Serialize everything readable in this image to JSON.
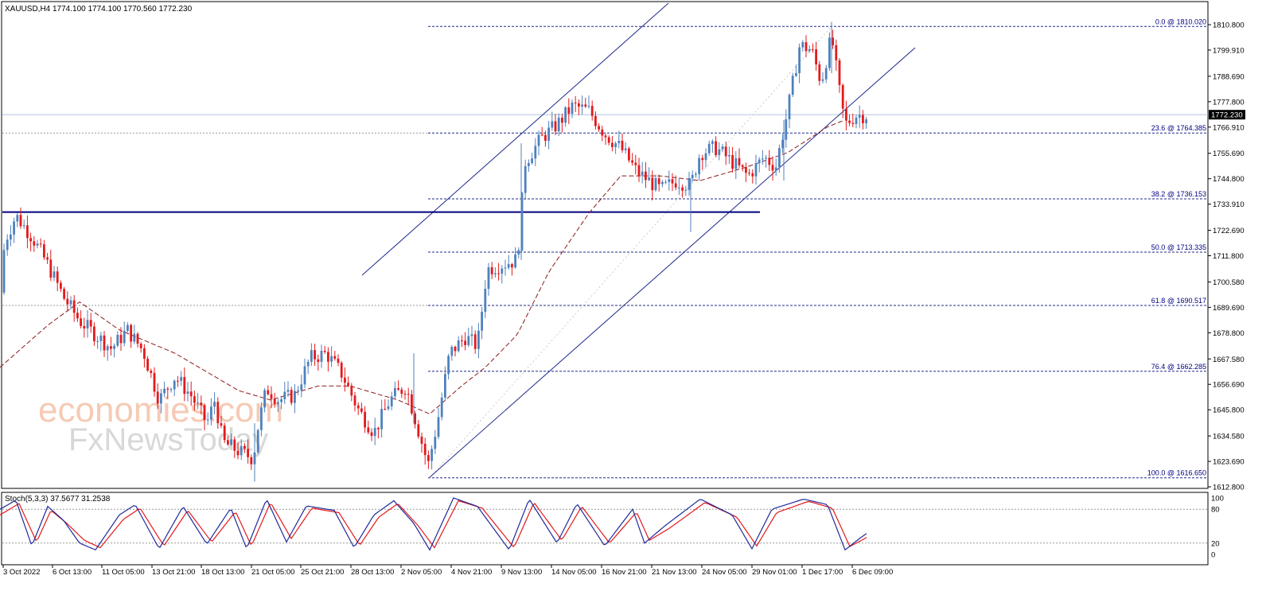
{
  "header": {
    "symbol": "XAUUSD,H4",
    "ohlc": "1774.100 1774.100 1770.560 1772.230"
  },
  "current_price": "1772.230",
  "oscillator": {
    "label": "Stoch(5,3,3) 37.5677 31.2538",
    "ticks": [
      "100",
      "80",
      "20",
      "0"
    ]
  },
  "watermark": {
    "line1": "economies.com",
    "line2": "FxNewsToday"
  },
  "colors": {
    "bull": "#4f81bd",
    "bear": "#e31a1c",
    "fib": "#1f2a8a",
    "channel": "#1f2a8a",
    "resistance": "#00007f",
    "ma": "#8b1a1a",
    "stoch_main": "#1f2a9a",
    "stoch_signal": "#e31a1c"
  },
  "chart_data": {
    "type": "candlestick",
    "title": "XAUUSD,H4",
    "ylim": [
      1612.8,
      1815.8
    ],
    "y_ticks": [
      "1810.800",
      "1799.910",
      "1788.690",
      "1777.800",
      "1766.910",
      "1755.690",
      "1744.800",
      "1733.910",
      "1722.690",
      "1711.800",
      "1700.580",
      "1689.690",
      "1678.800",
      "1667.580",
      "1656.690",
      "1645.800",
      "1634.580",
      "1623.690",
      "1612.800"
    ],
    "x_ticks": [
      "3 Oct 2022",
      "6 Oct 13:00",
      "11 Oct 05:00",
      "13 Oct 21:00",
      "18 Oct 13:00",
      "21 Oct 05:00",
      "25 Oct 21:00",
      "28 Oct 13:00",
      "2 Nov 05:00",
      "4 Nov 21:00",
      "9 Nov 13:00",
      "14 Nov 05:00",
      "16 Nov 21:00",
      "21 Nov 13:00",
      "24 Nov 05:00",
      "29 Nov 01:00",
      "1 Dec 17:00",
      "6 Dec 09:00"
    ],
    "fibonacci": [
      {
        "label": "0.0 @ 1810.020",
        "price": 1810.02
      },
      {
        "label": "23.6 @ 1764.385",
        "price": 1764.385
      },
      {
        "label": "38.2 @ 1736.153",
        "price": 1736.153
      },
      {
        "label": "50.0 @ 1713.335",
        "price": 1713.335
      },
      {
        "label": "61.8 @ 1690.517",
        "price": 1690.517
      },
      {
        "label": "76.4 @ 1662.285",
        "price": 1662.285
      },
      {
        "label": "100.0 @ 1616.650",
        "price": 1616.65
      }
    ],
    "resistance_level": 1730.5,
    "anchors": [
      [
        0,
        1696
      ],
      [
        6,
        1718
      ],
      [
        20,
        1729
      ],
      [
        40,
        1720
      ],
      [
        60,
        1708
      ],
      [
        80,
        1694
      ],
      [
        100,
        1684
      ],
      [
        120,
        1678
      ],
      [
        140,
        1672
      ],
      [
        160,
        1680
      ],
      [
        180,
        1671
      ],
      [
        200,
        1650
      ],
      [
        220,
        1660
      ],
      [
        240,
        1652
      ],
      [
        260,
        1640
      ],
      [
        270,
        1650
      ],
      [
        280,
        1632
      ],
      [
        300,
        1628
      ],
      [
        318,
        1625
      ],
      [
        325,
        1640
      ],
      [
        335,
        1655
      ],
      [
        350,
        1650
      ],
      [
        370,
        1652
      ],
      [
        390,
        1668
      ],
      [
        410,
        1670
      ],
      [
        430,
        1661
      ],
      [
        450,
        1646
      ],
      [
        470,
        1636
      ],
      [
        490,
        1650
      ],
      [
        510,
        1656
      ],
      [
        525,
        1638
      ],
      [
        538,
        1622
      ],
      [
        550,
        1641
      ],
      [
        565,
        1670
      ],
      [
        585,
        1677
      ],
      [
        600,
        1673
      ],
      [
        612,
        1706
      ],
      [
        630,
        1708
      ],
      [
        650,
        1710
      ],
      [
        660,
        1752
      ],
      [
        680,
        1762
      ],
      [
        700,
        1768
      ],
      [
        720,
        1776
      ],
      [
        740,
        1774
      ],
      [
        760,
        1764
      ],
      [
        780,
        1758
      ],
      [
        800,
        1748
      ],
      [
        815,
        1744
      ],
      [
        830,
        1740
      ],
      [
        850,
        1744
      ],
      [
        868,
        1742
      ],
      [
        880,
        1756
      ],
      [
        900,
        1758
      ],
      [
        920,
        1752
      ],
      [
        940,
        1746
      ],
      [
        960,
        1754
      ],
      [
        975,
        1750
      ],
      [
        990,
        1774
      ],
      [
        1005,
        1802
      ],
      [
        1020,
        1800
      ],
      [
        1032,
        1786
      ],
      [
        1045,
        1806
      ],
      [
        1055,
        1782
      ],
      [
        1062,
        1768
      ],
      [
        1075,
        1772
      ],
      [
        1090,
        1772
      ]
    ],
    "moving_average_anchors": [
      [
        0,
        1664
      ],
      [
        60,
        1682
      ],
      [
        100,
        1692
      ],
      [
        150,
        1680
      ],
      [
        220,
        1670
      ],
      [
        300,
        1654
      ],
      [
        340,
        1650
      ],
      [
        400,
        1656
      ],
      [
        440,
        1656
      ],
      [
        500,
        1650
      ],
      [
        540,
        1644
      ],
      [
        580,
        1656
      ],
      [
        610,
        1664
      ],
      [
        650,
        1678
      ],
      [
        690,
        1705
      ],
      [
        740,
        1730
      ],
      [
        780,
        1746
      ],
      [
        830,
        1746
      ],
      [
        880,
        1744
      ],
      [
        940,
        1750
      ],
      [
        990,
        1756
      ],
      [
        1040,
        1767
      ],
      [
        1062,
        1770
      ]
    ],
    "stoch_main_anchors": [
      [
        0,
        80
      ],
      [
        20,
        96
      ],
      [
        40,
        15
      ],
      [
        60,
        85
      ],
      [
        80,
        60
      ],
      [
        100,
        20
      ],
      [
        120,
        8
      ],
      [
        150,
        70
      ],
      [
        170,
        88
      ],
      [
        200,
        10
      ],
      [
        230,
        85
      ],
      [
        260,
        18
      ],
      [
        290,
        82
      ],
      [
        310,
        10
      ],
      [
        335,
        98
      ],
      [
        360,
        22
      ],
      [
        385,
        86
      ],
      [
        420,
        78
      ],
      [
        445,
        12
      ],
      [
        470,
        70
      ],
      [
        495,
        95
      ],
      [
        520,
        55
      ],
      [
        540,
        8
      ],
      [
        570,
        100
      ],
      [
        600,
        85
      ],
      [
        640,
        8
      ],
      [
        665,
        98
      ],
      [
        700,
        20
      ],
      [
        725,
        90
      ],
      [
        760,
        15
      ],
      [
        795,
        80
      ],
      [
        810,
        20
      ],
      [
        835,
        50
      ],
      [
        880,
        98
      ],
      [
        920,
        70
      ],
      [
        945,
        10
      ],
      [
        970,
        80
      ],
      [
        1010,
        98
      ],
      [
        1040,
        88
      ],
      [
        1062,
        8
      ],
      [
        1080,
        28
      ],
      [
        1090,
        38
      ]
    ],
    "stoch_signal_anchors": [
      [
        0,
        70
      ],
      [
        24,
        90
      ],
      [
        46,
        22
      ],
      [
        64,
        78
      ],
      [
        84,
        55
      ],
      [
        106,
        25
      ],
      [
        126,
        12
      ],
      [
        155,
        62
      ],
      [
        176,
        82
      ],
      [
        206,
        15
      ],
      [
        236,
        78
      ],
      [
        266,
        22
      ],
      [
        296,
        76
      ],
      [
        316,
        15
      ],
      [
        340,
        92
      ],
      [
        366,
        28
      ],
      [
        392,
        82
      ],
      [
        426,
        74
      ],
      [
        452,
        16
      ],
      [
        476,
        66
      ],
      [
        500,
        90
      ],
      [
        526,
        50
      ],
      [
        546,
        12
      ],
      [
        576,
        95
      ],
      [
        606,
        82
      ],
      [
        646,
        12
      ],
      [
        671,
        92
      ],
      [
        706,
        25
      ],
      [
        731,
        85
      ],
      [
        766,
        20
      ],
      [
        800,
        75
      ],
      [
        816,
        25
      ],
      [
        841,
        46
      ],
      [
        886,
        92
      ],
      [
        926,
        66
      ],
      [
        951,
        15
      ],
      [
        976,
        74
      ],
      [
        1016,
        94
      ],
      [
        1046,
        82
      ],
      [
        1068,
        14
      ],
      [
        1084,
        26
      ],
      [
        1090,
        31
      ]
    ]
  }
}
